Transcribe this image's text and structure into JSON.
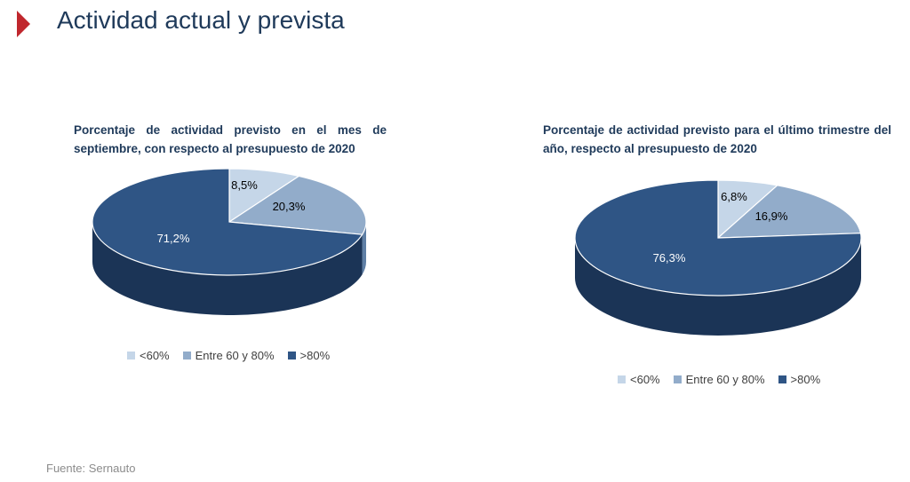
{
  "page": {
    "title": "Actividad actual y prevista",
    "source": "Fuente: Sernauto"
  },
  "colors": {
    "accent": "#c0272d",
    "title": "#1f3a5a",
    "light": "#c5d6e8",
    "mid": "#92acca",
    "dark": "#2f5585"
  },
  "chart_data": [
    {
      "type": "pie",
      "title": "Porcentaje de actividad previsto en el mes de septiembre, con respecto al presupuesto de 2020",
      "categories": [
        "<60%",
        "Entre 60 y 80%",
        ">80%"
      ],
      "values": [
        8.5,
        20.3,
        71.2
      ],
      "labels": [
        "8,5%",
        "20,3%",
        "71,2%"
      ],
      "legend": "bottom",
      "style": "3d"
    },
    {
      "type": "pie",
      "title": "Porcentaje de actividad previsto para el último trimestre del año, respecto al presupuesto de 2020",
      "categories": [
        "<60%",
        "Entre 60 y 80%",
        ">80%"
      ],
      "values": [
        6.8,
        16.9,
        76.3
      ],
      "labels": [
        "6,8%",
        "16,9%",
        "76,3%"
      ],
      "legend": "bottom",
      "style": "3d"
    }
  ]
}
